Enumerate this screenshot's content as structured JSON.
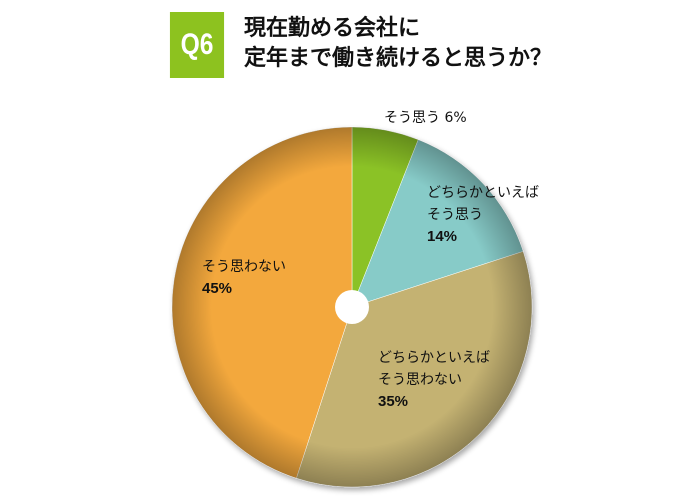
{
  "question": {
    "badge": "Q6",
    "title_line1": "現在勤める会社に",
    "title_line2": "定年まで働き続けると思うか？"
  },
  "chart_data": {
    "type": "pie",
    "start": "12 o'clock",
    "direction": "clockwise",
    "donut_hole": true,
    "slices": [
      {
        "label_lines": [
          "そう思う 6%"
        ],
        "pct_text": "",
        "value": 6,
        "color": "#8bc225"
      },
      {
        "label_lines": [
          "どちらかといえば",
          "そう思う"
        ],
        "pct_text": "14%",
        "value": 14,
        "color": "#87cbc8"
      },
      {
        "label_lines": [
          "どちらかといえば",
          "そう思わない"
        ],
        "pct_text": "35%",
        "value": 35,
        "color": "#c4b272"
      },
      {
        "label_lines": [
          "そう思わない"
        ],
        "pct_text": "45%",
        "value": 45,
        "color": "#f3a83c"
      }
    ]
  }
}
